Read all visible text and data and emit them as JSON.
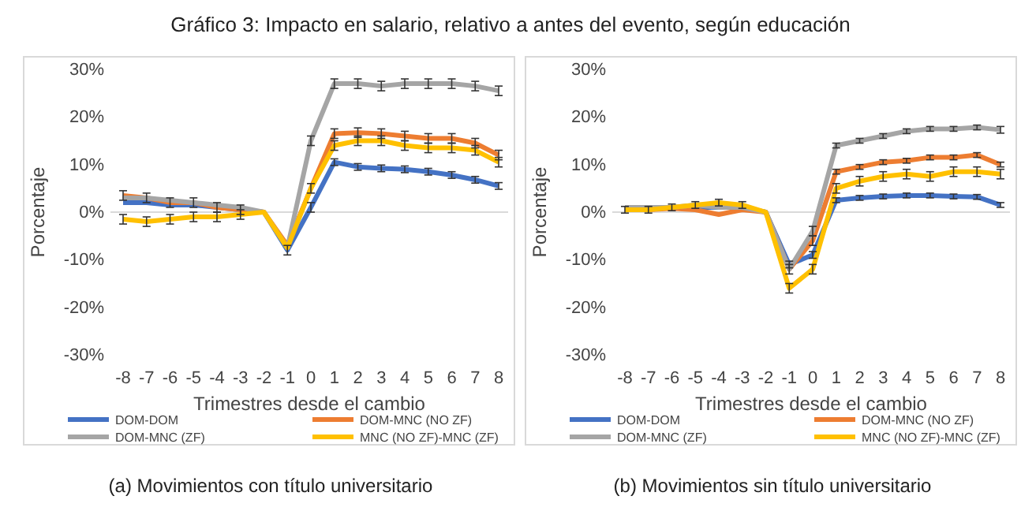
{
  "chart_data": [
    {
      "type": "line",
      "title": "Gráfico 3: Impacto en salario, relativo a antes del evento, según educación",
      "xlabel": "Trimestres desde el cambio",
      "ylabel": "Porcentaje",
      "annotations": [
        "(a) Movimientos con título universitario"
      ],
      "categories": [
        "-8",
        "-7",
        "-6",
        "-5",
        "-4",
        "-3",
        "-2",
        "-1",
        "0",
        "1",
        "2",
        "3",
        "4",
        "5",
        "6",
        "7",
        "8"
      ],
      "ylim": [
        -30,
        30
      ],
      "yticks": [
        {
          "value": -30,
          "label": "-30%"
        },
        {
          "value": -20,
          "label": "-20%"
        },
        {
          "value": -10,
          "label": "-10%"
        },
        {
          "value": 0,
          "label": "0%"
        },
        {
          "value": 10,
          "label": "10%"
        },
        {
          "value": 20,
          "label": "20%"
        },
        {
          "value": 30,
          "label": "30%"
        }
      ],
      "legend": "bottom",
      "marker": "none",
      "line_style": "solid",
      "ref_lines": [
        {
          "axis": "y",
          "value": 0,
          "color": "#d9d9d9"
        }
      ],
      "series": [
        {
          "name": "DOM-DOM",
          "color": "#4472c4",
          "values": [
            2,
            2,
            1.5,
            1.5,
            1,
            0.5,
            0,
            -8,
            1,
            10.5,
            9.5,
            9.2,
            9,
            8.5,
            7.8,
            6.8,
            5.5
          ],
          "errors": [
            null,
            null,
            null,
            null,
            null,
            null,
            null,
            1,
            1,
            0.7,
            0.7,
            0.7,
            0.7,
            0.7,
            0.7,
            0.7,
            0.7
          ]
        },
        {
          "name": "DOM-MNC (NO ZF)",
          "color": "#ed7d31",
          "values": [
            3.5,
            3,
            2,
            2,
            1,
            0.5,
            0,
            -7,
            5,
            16.5,
            16.7,
            16.5,
            16,
            15.5,
            15.5,
            14.5,
            12
          ],
          "errors": [
            1,
            1,
            1,
            1,
            1,
            1,
            null,
            null,
            1,
            1,
            1,
            1,
            1,
            1,
            1,
            1,
            1
          ]
        },
        {
          "name": "DOM-MNC (ZF)",
          "color": "#a5a5a5",
          "values": [
            3,
            3,
            2.5,
            2,
            1.5,
            1,
            0,
            -7.5,
            15,
            27,
            27,
            26.5,
            27,
            27,
            27,
            26.5,
            25.5
          ],
          "errors": [
            null,
            null,
            null,
            null,
            null,
            null,
            null,
            null,
            1,
            1,
            1,
            1,
            1,
            1,
            1,
            1,
            1
          ]
        },
        {
          "name": "MNC (NO ZF)-MNC (ZF)",
          "color": "#ffc000",
          "values": [
            -1.5,
            -2,
            -1.5,
            -1,
            -1,
            -0.5,
            0,
            -7.5,
            5,
            14,
            15,
            15,
            14,
            13.5,
            13.5,
            13,
            10.5
          ],
          "errors": [
            1,
            1,
            1,
            1,
            1,
            1,
            null,
            null,
            null,
            1,
            1,
            1,
            1,
            1,
            1,
            1,
            1
          ]
        }
      ]
    },
    {
      "type": "line",
      "xlabel": "Trimestres desde el cambio",
      "ylabel": "Porcentaje",
      "annotations": [
        "(b) Movimientos sin título universitario"
      ],
      "categories": [
        "-8",
        "-7",
        "-6",
        "-5",
        "-4",
        "-3",
        "-2",
        "-1",
        "0",
        "1",
        "2",
        "3",
        "4",
        "5",
        "6",
        "7",
        "8"
      ],
      "ylim": [
        -30,
        30
      ],
      "yticks": [
        {
          "value": -30,
          "label": "-30%"
        },
        {
          "value": -20,
          "label": "-20%"
        },
        {
          "value": -10,
          "label": "-10%"
        },
        {
          "value": 0,
          "label": "0%"
        },
        {
          "value": 10,
          "label": "10%"
        },
        {
          "value": 20,
          "label": "20%"
        },
        {
          "value": 30,
          "label": "30%"
        }
      ],
      "legend": "bottom",
      "marker": "none",
      "line_style": "solid",
      "ref_lines": [
        {
          "axis": "y",
          "value": 0,
          "color": "#d9d9d9"
        }
      ],
      "series": [
        {
          "name": "DOM-DOM",
          "color": "#4472c4",
          "values": [
            null,
            null,
            1,
            1,
            1,
            1,
            0,
            -11,
            -9,
            2.5,
            3,
            3.3,
            3.5,
            3.5,
            3.3,
            3.2,
            1.5
          ],
          "errors": [
            null,
            null,
            null,
            null,
            null,
            null,
            null,
            0.7,
            0.7,
            0.5,
            0.5,
            0.5,
            0.5,
            0.5,
            0.5,
            0.5,
            0.5
          ]
        },
        {
          "name": "DOM-MNC (NO ZF)",
          "color": "#ed7d31",
          "values": [
            0.5,
            0.5,
            0.8,
            0.5,
            -0.5,
            0.5,
            0,
            -12,
            -6,
            8.5,
            9.5,
            10.5,
            10.8,
            11.5,
            11.5,
            12,
            10
          ],
          "errors": [
            null,
            null,
            null,
            null,
            null,
            null,
            null,
            null,
            1,
            0.5,
            0.5,
            0.5,
            0.5,
            0.5,
            0.5,
            0.5,
            0.5
          ]
        },
        {
          "name": "DOM-MNC (ZF)",
          "color": "#a5a5a5",
          "values": [
            1,
            1,
            1,
            1.5,
            1,
            1,
            0,
            -12,
            -4,
            14,
            15,
            16,
            17,
            17.5,
            17.5,
            17.8,
            17.3
          ],
          "errors": [
            null,
            null,
            null,
            null,
            null,
            null,
            null,
            1,
            1,
            0.5,
            0.5,
            0.5,
            0.5,
            0.5,
            0.5,
            0.5,
            0.7
          ]
        },
        {
          "name": "MNC (NO ZF)-MNC (ZF)",
          "color": "#ffc000",
          "values": [
            0.5,
            0.5,
            1,
            1.5,
            2,
            1.5,
            0,
            -16,
            -12,
            5,
            6.5,
            7.5,
            8,
            7.5,
            8.5,
            8.5,
            8
          ],
          "errors": [
            0.7,
            0.7,
            0.7,
            0.7,
            0.7,
            0.7,
            null,
            1,
            1,
            1,
            1,
            1,
            1,
            1,
            1,
            1,
            1
          ]
        }
      ]
    }
  ]
}
